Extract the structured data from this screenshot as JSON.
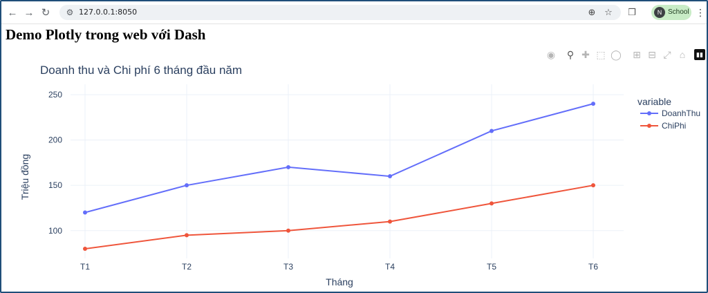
{
  "browser": {
    "url": "127.0.0.1:8050",
    "profile_initial": "N",
    "profile_name": "School",
    "icons": [
      "back-icon",
      "forward-icon",
      "reload-icon",
      "site-info-icon",
      "zoom-icon",
      "star-icon",
      "extensions-icon",
      "menu-icon"
    ]
  },
  "page": {
    "heading": "Demo Plotly trong web với Dash"
  },
  "modebar": {
    "buttons": [
      "camera-icon",
      "zoom-icon",
      "pan-icon",
      "box-select-icon",
      "lasso-icon",
      "zoom-in-icon",
      "zoom-out-icon",
      "autoscale-icon",
      "reset-axes-icon",
      "plotly-logo-icon"
    ]
  },
  "chart_data": {
    "type": "line",
    "title": "Doanh thu và Chi phí 6 tháng đầu năm",
    "xlabel": "Tháng",
    "ylabel": "Triệu đồng",
    "categories": [
      "T1",
      "T2",
      "T3",
      "T4",
      "T5",
      "T6"
    ],
    "yticks": [
      100,
      150,
      200,
      250
    ],
    "ylim": [
      70,
      250
    ],
    "grid": true,
    "legend_title": "variable",
    "legend_position": "top-right",
    "series": [
      {
        "name": "DoanhThu",
        "color": "#636efa",
        "values": [
          120,
          150,
          170,
          160,
          210,
          240
        ]
      },
      {
        "name": "ChiPhi",
        "color": "#ef553b",
        "values": [
          80,
          95,
          100,
          110,
          130,
          150
        ]
      }
    ]
  }
}
